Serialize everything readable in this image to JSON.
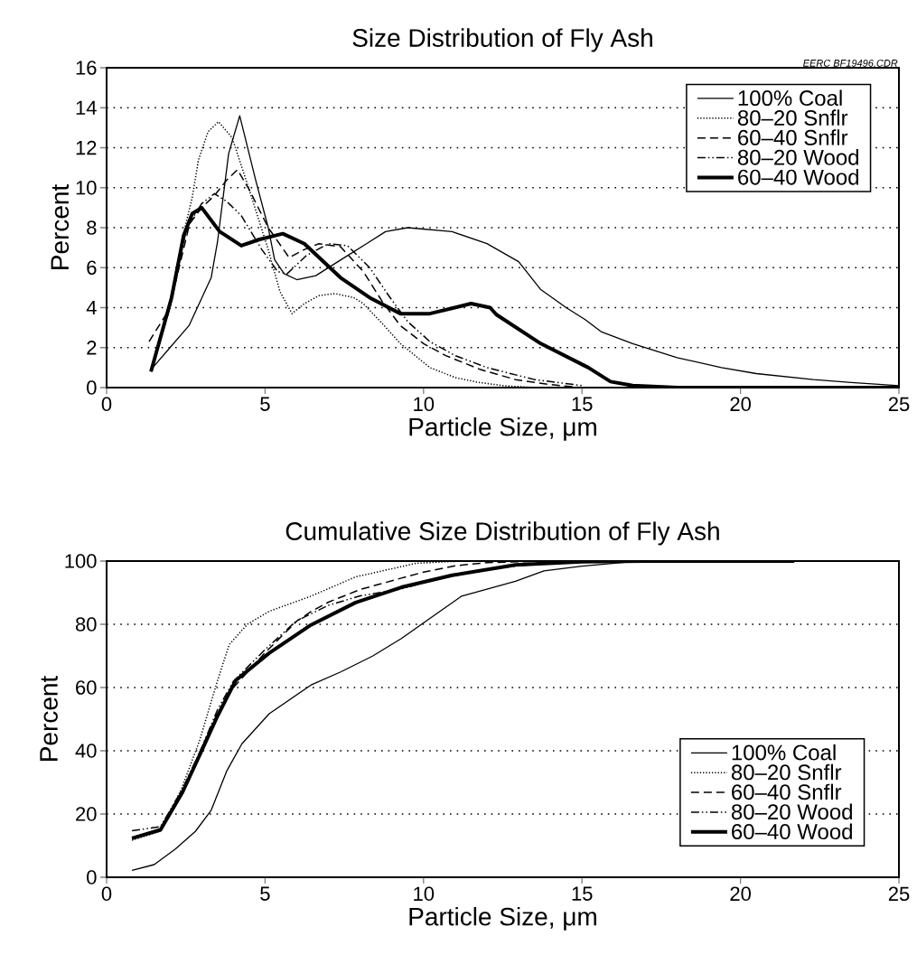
{
  "chart_data": [
    {
      "type": "line",
      "title": "Size Distribution of Fly Ash",
      "xlabel": "Particle Size, μm",
      "ylabel": "Percent",
      "annotations": [
        "EERC BF19496.CDR"
      ],
      "xlim": [
        0,
        25
      ],
      "ylim": [
        0,
        16
      ],
      "xticks": [
        0,
        5,
        10,
        15,
        20,
        25
      ],
      "yticks": [
        0,
        2,
        4,
        6,
        8,
        10,
        12,
        14,
        16
      ],
      "grid": "y",
      "legend": "top right",
      "series": [
        {
          "name": "100% Coal",
          "color": "#000000",
          "line_style": "solid",
          "x": [
            1.4,
            2.0,
            2.6,
            3.3,
            3.5,
            3.85,
            4.2,
            4.7,
            5.1,
            5.3,
            5.6,
            6.0,
            6.6,
            7.4,
            8.2,
            8.8,
            9.5,
            10.9,
            12,
            13,
            13.7,
            14.5,
            15.1,
            15.6,
            16.6,
            18,
            19.4,
            20.5,
            22.3,
            23.5,
            25
          ],
          "values": [
            0.9,
            2.0,
            3.1,
            5.5,
            7.3,
            11.7,
            13.6,
            10.4,
            8.0,
            6.4,
            5.7,
            5.4,
            5.6,
            6.4,
            7.2,
            7.8,
            8.0,
            7.8,
            7.2,
            6.3,
            4.9,
            4.0,
            3.4,
            2.8,
            2.2,
            1.5,
            1.0,
            0.7,
            0.4,
            0.25,
            0.1
          ]
        },
        {
          "name": "80–20 Snflr",
          "color": "#000000",
          "line_style": "dotted",
          "x": [
            1.4,
            2.0,
            2.5,
            2.7,
            2.9,
            3.2,
            3.53,
            3.96,
            4.5,
            5.1,
            5.47,
            5.85,
            6.24,
            6.7,
            7.2,
            7.8,
            8.1,
            8.7,
            9.27,
            10.2,
            11,
            11.7,
            12.5,
            13.5
          ],
          "values": [
            0.8,
            4.0,
            8.2,
            9.5,
            11.4,
            12.8,
            13.3,
            12.5,
            9.9,
            6.9,
            4.8,
            3.7,
            4.2,
            4.6,
            4.7,
            4.5,
            4.2,
            3.2,
            2.2,
            1.0,
            0.5,
            0.27,
            0.1,
            0.0
          ]
        },
        {
          "name": "60–40 Snflr",
          "color": "#000000",
          "line_style": "dashed",
          "x": [
            1.34,
            1.97,
            2.62,
            3.0,
            3.4,
            3.8,
            4.13,
            4.5,
            5.1,
            5.76,
            6.23,
            6.7,
            7.38,
            8.1,
            8.7,
            9.27,
            10.0,
            10.7,
            11.8,
            12.9,
            14,
            15
          ],
          "values": [
            2.3,
            3.9,
            8.2,
            9.0,
            9.6,
            10.4,
            10.9,
            9.9,
            8.0,
            6.5,
            6.9,
            7.2,
            7.05,
            5.8,
            4.3,
            3.1,
            2.2,
            1.6,
            0.9,
            0.4,
            0.15,
            0.0
          ]
        },
        {
          "name": "80–20 Wood",
          "color": "#000000",
          "line_style": "dashdotdotted",
          "x": [
            1.4,
            2.0,
            2.53,
            3.0,
            3.4,
            3.8,
            4.25,
            4.9,
            5.4,
            5.7,
            6.3,
            7.0,
            7.6,
            8.3,
            8.9,
            9.5,
            10.2,
            11,
            12,
            13.5,
            15
          ],
          "values": [
            0.8,
            4.0,
            8.0,
            9.2,
            9.7,
            9.3,
            8.6,
            6.9,
            5.8,
            5.7,
            6.6,
            7.2,
            7.1,
            6.0,
            4.6,
            3.3,
            2.3,
            1.6,
            1.0,
            0.4,
            0.1
          ]
        },
        {
          "name": "60–40 Wood",
          "color": "#000000",
          "line_style": "solid",
          "x": [
            1.4,
            2.05,
            2.43,
            2.7,
            3.0,
            3.57,
            4.25,
            4.8,
            5.56,
            6.24,
            7.38,
            8.3,
            9.27,
            10.2,
            11.5,
            12.1,
            12.3,
            13.7,
            15.2,
            15.9,
            16.6,
            18,
            25
          ],
          "values": [
            0.8,
            4.5,
            7.6,
            8.7,
            9.0,
            7.8,
            7.1,
            7.4,
            7.7,
            7.2,
            5.5,
            4.5,
            3.7,
            3.7,
            4.2,
            4.0,
            3.65,
            2.2,
            1.0,
            0.3,
            0.1,
            0.0,
            0.0
          ]
        }
      ]
    },
    {
      "type": "line",
      "title": "Cumulative Size Distribution of Fly Ash",
      "xlabel": "Particle Size, μm",
      "ylabel": "Percent",
      "xlim": [
        0,
        25
      ],
      "ylim": [
        0,
        100
      ],
      "xticks": [
        0,
        5,
        10,
        15,
        20,
        25
      ],
      "yticks": [
        0,
        20,
        40,
        60,
        80,
        100
      ],
      "grid": "y",
      "legend": "bottom right",
      "series": [
        {
          "name": "100% Coal",
          "color": "#000000",
          "line_style": "solid",
          "x": [
            0.8,
            1.5,
            2.17,
            2.8,
            3.3,
            3.79,
            4.27,
            5.13,
            6.45,
            7.4,
            8.4,
            9.3,
            10.25,
            11.2,
            12.9,
            13.8,
            15,
            16.6,
            18,
            21.7
          ],
          "values": [
            2.2,
            4.0,
            8.9,
            14.5,
            21.2,
            33.6,
            42.2,
            51.7,
            60.8,
            65,
            70,
            75.5,
            82.2,
            88.9,
            93.6,
            96.9,
            98.4,
            99.8,
            100,
            100
          ]
        },
        {
          "name": "80–20 Snflr",
          "color": "#000000",
          "line_style": "dotted",
          "x": [
            0.8,
            1.7,
            2.36,
            2.93,
            3.5,
            3.87,
            4.44,
            5.13,
            6.45,
            7.86,
            9.77,
            11,
            13
          ],
          "values": [
            11.7,
            14.6,
            27.9,
            43.1,
            62.2,
            73.6,
            80,
            84.1,
            88.9,
            95,
            99.3,
            99.9,
            100
          ]
        },
        {
          "name": "60–40 Snflr",
          "color": "#000000",
          "line_style": "dashed",
          "x": [
            0.8,
            1.7,
            2.4,
            3.0,
            3.5,
            4.0,
            5.0,
            6.0,
            6.45,
            7.0,
            8.0,
            9.3,
            10.0,
            11.0,
            12.0,
            14.0,
            18.0
          ],
          "values": [
            12.5,
            15,
            27,
            41,
            52,
            60,
            71,
            81,
            84,
            87,
            91,
            94.6,
            96.5,
            98.5,
            99.5,
            100,
            100
          ]
        },
        {
          "name": "80–20 Wood",
          "color": "#000000",
          "line_style": "dashdotdotted",
          "x": [
            0.8,
            1.7,
            2.4,
            3.0,
            3.5,
            4.0,
            5.0,
            5.98,
            7.0,
            8.0,
            9.3,
            10.5,
            12,
            14,
            17
          ],
          "values": [
            14.7,
            16,
            28,
            41,
            53,
            62,
            72,
            81,
            86,
            89,
            91.2,
            94.5,
            97.5,
            99.5,
            100
          ]
        },
        {
          "name": "60–40 Wood",
          "color": "#000000",
          "line_style": "solid",
          "x": [
            0.8,
            1.7,
            2.4,
            3.0,
            3.5,
            4.07,
            5.13,
            6.45,
            7.86,
            9.3,
            10.9,
            12.9,
            15,
            17,
            21.7
          ],
          "values": [
            12.3,
            15,
            27,
            40,
            51,
            62.2,
            70.9,
            79.8,
            86.9,
            91.7,
            95.5,
            98.8,
            99.8,
            100,
            100
          ]
        }
      ]
    }
  ]
}
